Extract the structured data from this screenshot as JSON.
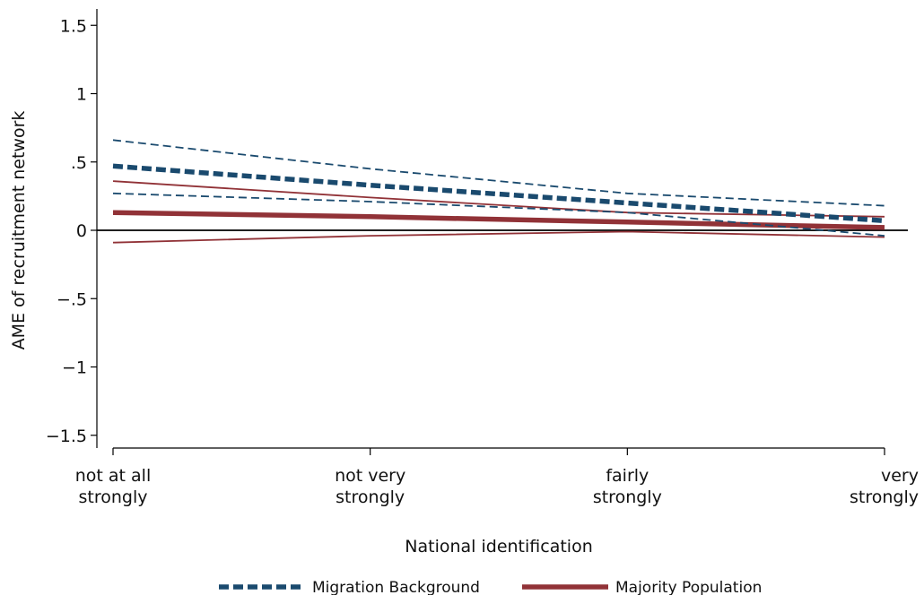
{
  "chart_data": {
    "type": "line",
    "title": "",
    "xlabel": "National identification",
    "ylabel": "AME of recruitment network",
    "categories": [
      [
        "not at all",
        "strongly"
      ],
      [
        "not very",
        "strongly"
      ],
      [
        "fairly",
        "strongly"
      ],
      [
        "very",
        "strongly"
      ]
    ],
    "x": [
      1,
      2,
      3,
      4
    ],
    "ylim": [
      -1.6,
      1.6
    ],
    "yticks": [
      1.5,
      1,
      0.5,
      0,
      -0.5,
      -1,
      -1.5
    ],
    "ytick_labels": [
      "1.5",
      "1",
      ".5",
      "0",
      "−.5",
      "−1",
      "−1.5"
    ],
    "zero_line": true,
    "grid": false,
    "legend_position": "bottom",
    "colors": {
      "migration": "#1a4a6e",
      "majority": "#913237",
      "zero": "#000000"
    },
    "series": [
      {
        "name": "Migration Background",
        "group": "migration",
        "role": "estimate",
        "values": [
          0.47,
          0.33,
          0.2,
          0.07
        ]
      },
      {
        "group": "migration",
        "role": "ci_upper",
        "values": [
          0.66,
          0.45,
          0.27,
          0.18
        ]
      },
      {
        "group": "migration",
        "role": "ci_lower",
        "values": [
          0.27,
          0.21,
          0.13,
          -0.04
        ]
      },
      {
        "name": "Majority Population",
        "group": "majority",
        "role": "estimate",
        "values": [
          0.13,
          0.1,
          0.06,
          0.02
        ]
      },
      {
        "group": "majority",
        "role": "ci_upper",
        "values": [
          0.36,
          0.24,
          0.13,
          0.1
        ]
      },
      {
        "group": "majority",
        "role": "ci_lower",
        "values": [
          -0.09,
          -0.04,
          -0.01,
          -0.05
        ]
      }
    ]
  }
}
